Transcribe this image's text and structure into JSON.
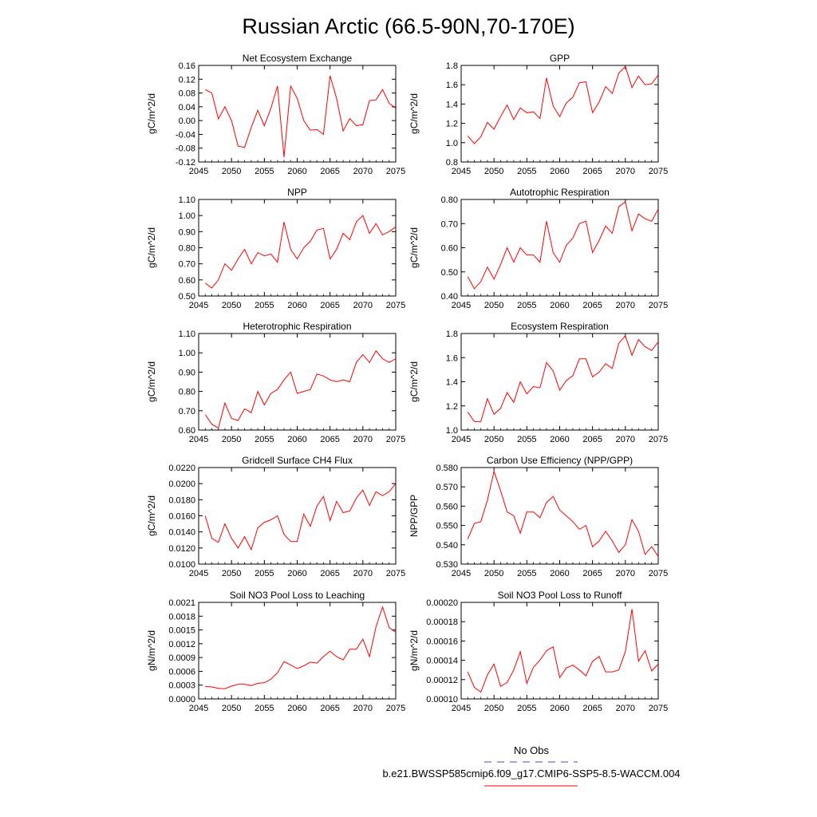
{
  "page_title": "Russian Arctic (66.5-90N,70-170E)",
  "legend": {
    "obs_label": "No Obs",
    "obs_color": "#4444cc",
    "model_label": "b.e21.BWSSP585cmip6.f09_g17.CMIP6-SSP5-8.5-WACCM.004",
    "model_color": "#ff0000"
  },
  "series_color": "#ff0000",
  "chart_data": [
    {
      "type": "line",
      "title": "Net Ecosystem Exchange",
      "ylabel": "gC/m^2/d",
      "xlim": [
        2045,
        2075
      ],
      "ylim": [
        -0.12,
        0.16
      ],
      "xticks": [
        "2045",
        "2050",
        "2055",
        "2060",
        "2065",
        "2070",
        "2075"
      ],
      "yticks": [
        "-0.12",
        "-0.08",
        "-0.04",
        "0.00",
        "0.04",
        "0.08",
        "0.12",
        "0.16"
      ],
      "x": [
        2046,
        2047,
        2048,
        2049,
        2050,
        2051,
        2052,
        2053,
        2054,
        2055,
        2056,
        2057,
        2058,
        2059,
        2060,
        2061,
        2062,
        2063,
        2064,
        2065,
        2066,
        2067,
        2068,
        2069,
        2070,
        2071,
        2072,
        2073,
        2074,
        2075
      ],
      "values": [
        0.09,
        0.08,
        0.005,
        0.04,
        0.0,
        -0.074,
        -0.078,
        -0.02,
        0.03,
        -0.015,
        0.036,
        0.1,
        -0.106,
        0.1,
        0.065,
        0.0,
        -0.028,
        -0.026,
        -0.04,
        0.13,
        0.064,
        -0.03,
        0.006,
        -0.015,
        -0.012,
        0.058,
        0.06,
        0.09,
        0.05,
        0.036
      ]
    },
    {
      "type": "line",
      "title": "GPP",
      "ylabel": "gC/m^2/d",
      "xlim": [
        2045,
        2075
      ],
      "ylim": [
        0.8,
        1.8
      ],
      "xticks": [
        "2045",
        "2050",
        "2055",
        "2060",
        "2065",
        "2070",
        "2075"
      ],
      "yticks": [
        "0.8",
        "1.0",
        "1.2",
        "1.4",
        "1.6",
        "1.8"
      ],
      "x": [
        2046,
        2047,
        2048,
        2049,
        2050,
        2051,
        2052,
        2053,
        2054,
        2055,
        2056,
        2057,
        2058,
        2059,
        2060,
        2061,
        2062,
        2063,
        2064,
        2065,
        2066,
        2067,
        2068,
        2069,
        2070,
        2071,
        2072,
        2073,
        2074,
        2075
      ],
      "values": [
        1.07,
        0.99,
        1.06,
        1.21,
        1.14,
        1.27,
        1.39,
        1.24,
        1.36,
        1.31,
        1.32,
        1.25,
        1.67,
        1.38,
        1.27,
        1.41,
        1.47,
        1.62,
        1.63,
        1.31,
        1.42,
        1.58,
        1.51,
        1.72,
        1.79,
        1.57,
        1.69,
        1.6,
        1.61,
        1.7
      ]
    },
    {
      "type": "line",
      "title": "NPP",
      "ylabel": "gC/m^2/d",
      "xlim": [
        2045,
        2075
      ],
      "ylim": [
        0.5,
        1.1
      ],
      "xticks": [
        "2045",
        "2050",
        "2055",
        "2060",
        "2065",
        "2070",
        "2075"
      ],
      "yticks": [
        "0.50",
        "0.60",
        "0.70",
        "0.80",
        "0.90",
        "1.00",
        "1.10"
      ],
      "x": [
        2046,
        2047,
        2048,
        2049,
        2050,
        2051,
        2052,
        2053,
        2054,
        2055,
        2056,
        2057,
        2058,
        2059,
        2060,
        2061,
        2062,
        2063,
        2064,
        2065,
        2066,
        2067,
        2068,
        2069,
        2070,
        2071,
        2072,
        2073,
        2074,
        2075
      ],
      "values": [
        0.58,
        0.55,
        0.6,
        0.7,
        0.66,
        0.73,
        0.79,
        0.7,
        0.77,
        0.75,
        0.76,
        0.71,
        0.96,
        0.79,
        0.73,
        0.8,
        0.84,
        0.91,
        0.92,
        0.73,
        0.79,
        0.89,
        0.85,
        0.96,
        1.0,
        0.89,
        0.95,
        0.88,
        0.9,
        0.93
      ]
    },
    {
      "type": "line",
      "title": "Autotrophic Respiration",
      "ylabel": "gC/m^2/d",
      "xlim": [
        2045,
        2075
      ],
      "ylim": [
        0.4,
        0.8
      ],
      "xticks": [
        "2045",
        "2050",
        "2055",
        "2060",
        "2065",
        "2070",
        "2075"
      ],
      "yticks": [
        "0.40",
        "0.50",
        "0.60",
        "0.70",
        "0.80"
      ],
      "x": [
        2046,
        2047,
        2048,
        2049,
        2050,
        2051,
        2052,
        2053,
        2054,
        2055,
        2056,
        2057,
        2058,
        2059,
        2060,
        2061,
        2062,
        2063,
        2064,
        2065,
        2066,
        2067,
        2068,
        2069,
        2070,
        2071,
        2072,
        2073,
        2074,
        2075
      ],
      "values": [
        0.48,
        0.43,
        0.46,
        0.52,
        0.47,
        0.53,
        0.6,
        0.54,
        0.6,
        0.57,
        0.57,
        0.54,
        0.71,
        0.58,
        0.54,
        0.61,
        0.64,
        0.7,
        0.71,
        0.58,
        0.63,
        0.69,
        0.66,
        0.77,
        0.79,
        0.67,
        0.74,
        0.72,
        0.71,
        0.76
      ]
    },
    {
      "type": "line",
      "title": "Heterotrophic Respiration",
      "ylabel": "gC/m^2/d",
      "xlim": [
        2045,
        2075
      ],
      "ylim": [
        0.6,
        1.1
      ],
      "xticks": [
        "2045",
        "2050",
        "2055",
        "2060",
        "2065",
        "2070",
        "2075"
      ],
      "yticks": [
        "0.60",
        "0.70",
        "0.80",
        "0.90",
        "1.00",
        "1.10"
      ],
      "x": [
        2046,
        2047,
        2048,
        2049,
        2050,
        2051,
        2052,
        2053,
        2054,
        2055,
        2056,
        2057,
        2058,
        2059,
        2060,
        2061,
        2062,
        2063,
        2064,
        2065,
        2066,
        2067,
        2068,
        2069,
        2070,
        2071,
        2072,
        2073,
        2074,
        2075
      ],
      "values": [
        0.68,
        0.63,
        0.61,
        0.74,
        0.66,
        0.65,
        0.71,
        0.69,
        0.8,
        0.73,
        0.79,
        0.81,
        0.86,
        0.9,
        0.79,
        0.8,
        0.81,
        0.89,
        0.88,
        0.86,
        0.85,
        0.86,
        0.85,
        0.95,
        0.99,
        0.95,
        1.01,
        0.97,
        0.95,
        0.97
      ]
    },
    {
      "type": "line",
      "title": "Ecosystem Respiration",
      "ylabel": "gC/m^2/d",
      "xlim": [
        2045,
        2075
      ],
      "ylim": [
        1.0,
        1.8
      ],
      "xticks": [
        "2045",
        "2050",
        "2055",
        "2060",
        "2065",
        "2070",
        "2075"
      ],
      "yticks": [
        "1.0",
        "1.2",
        "1.4",
        "1.6",
        "1.8"
      ],
      "x": [
        2046,
        2047,
        2048,
        2049,
        2050,
        2051,
        2052,
        2053,
        2054,
        2055,
        2056,
        2057,
        2058,
        2059,
        2060,
        2061,
        2062,
        2063,
        2064,
        2065,
        2066,
        2067,
        2068,
        2069,
        2070,
        2071,
        2072,
        2073,
        2074,
        2075
      ],
      "values": [
        1.15,
        1.07,
        1.07,
        1.26,
        1.13,
        1.18,
        1.31,
        1.23,
        1.4,
        1.3,
        1.36,
        1.35,
        1.56,
        1.49,
        1.33,
        1.41,
        1.45,
        1.59,
        1.59,
        1.44,
        1.48,
        1.55,
        1.51,
        1.72,
        1.78,
        1.62,
        1.75,
        1.69,
        1.66,
        1.73
      ]
    },
    {
      "type": "line",
      "title": "Gridcell Surface CH4 Flux",
      "ylabel": "gC/m^2/d",
      "xlim": [
        2045,
        2075
      ],
      "ylim": [
        0.01,
        0.022
      ],
      "xticks": [
        "2045",
        "2050",
        "2055",
        "2060",
        "2065",
        "2070",
        "2075"
      ],
      "yticks": [
        "0.0100",
        "0.0120",
        "0.0140",
        "0.0160",
        "0.0180",
        "0.0200",
        "0.0220"
      ],
      "x": [
        2046,
        2047,
        2048,
        2049,
        2050,
        2051,
        2052,
        2053,
        2054,
        2055,
        2056,
        2057,
        2058,
        2059,
        2060,
        2061,
        2062,
        2063,
        2064,
        2065,
        2066,
        2067,
        2068,
        2069,
        2070,
        2071,
        2072,
        2073,
        2074,
        2075
      ],
      "values": [
        0.016,
        0.0132,
        0.0127,
        0.015,
        0.0132,
        0.012,
        0.0134,
        0.0118,
        0.0145,
        0.0152,
        0.0155,
        0.016,
        0.0137,
        0.0128,
        0.0128,
        0.0162,
        0.0147,
        0.0172,
        0.0184,
        0.0154,
        0.0178,
        0.0164,
        0.0166,
        0.0182,
        0.0192,
        0.0173,
        0.019,
        0.0185,
        0.019,
        0.02
      ]
    },
    {
      "type": "line",
      "title": "Carbon Use Efficiency (NPP/GPP)",
      "ylabel": "NPP/GPP",
      "xlim": [
        2045,
        2075
      ],
      "ylim": [
        0.53,
        0.58
      ],
      "xticks": [
        "2045",
        "2050",
        "2055",
        "2060",
        "2065",
        "2070",
        "2075"
      ],
      "yticks": [
        "0.530",
        "0.540",
        "0.550",
        "0.560",
        "0.570",
        "0.580"
      ],
      "x": [
        2046,
        2047,
        2048,
        2049,
        2050,
        2051,
        2052,
        2053,
        2054,
        2055,
        2056,
        2057,
        2058,
        2059,
        2060,
        2061,
        2062,
        2063,
        2064,
        2065,
        2066,
        2067,
        2068,
        2069,
        2070,
        2071,
        2072,
        2073,
        2074,
        2075
      ],
      "values": [
        0.543,
        0.551,
        0.552,
        0.563,
        0.578,
        0.568,
        0.557,
        0.555,
        0.546,
        0.557,
        0.557,
        0.554,
        0.562,
        0.565,
        0.558,
        0.555,
        0.552,
        0.548,
        0.55,
        0.539,
        0.542,
        0.547,
        0.542,
        0.536,
        0.54,
        0.553,
        0.547,
        0.535,
        0.539,
        0.534
      ]
    },
    {
      "type": "line",
      "title": "Soil NO3 Pool Loss to Leaching",
      "ylabel": "gN/m^2/d",
      "xlim": [
        2045,
        2075
      ],
      "ylim": [
        0.0,
        0.0021
      ],
      "xticks": [
        "2045",
        "2050",
        "2055",
        "2060",
        "2065",
        "2070",
        "2075"
      ],
      "yticks": [
        "0.0000",
        "0.0003",
        "0.0006",
        "0.0009",
        "0.0012",
        "0.0015",
        "0.0018",
        "0.0021"
      ],
      "x": [
        2046,
        2047,
        2048,
        2049,
        2050,
        2051,
        2052,
        2053,
        2054,
        2055,
        2056,
        2057,
        2058,
        2059,
        2060,
        2061,
        2062,
        2063,
        2064,
        2065,
        2066,
        2067,
        2068,
        2069,
        2070,
        2071,
        2072,
        2073,
        2074,
        2075
      ],
      "values": [
        0.00027,
        0.00026,
        0.00023,
        0.00022,
        0.00028,
        0.00032,
        0.00032,
        0.00029,
        0.00034,
        0.00035,
        0.00043,
        0.00057,
        0.00081,
        0.00074,
        0.00066,
        0.00072,
        0.0008,
        0.00078,
        0.00092,
        0.00104,
        0.00092,
        0.00085,
        0.00108,
        0.00108,
        0.0013,
        0.00092,
        0.00157,
        0.002,
        0.00155,
        0.00145
      ]
    },
    {
      "type": "line",
      "title": "Soil NO3 Pool Loss to Runoff",
      "ylabel": "gN/m^2/d",
      "xlim": [
        2045,
        2075
      ],
      "ylim": [
        0.0001,
        0.0002
      ],
      "xticks": [
        "2045",
        "2050",
        "2055",
        "2060",
        "2065",
        "2070",
        "2075"
      ],
      "yticks": [
        "0.00010",
        "0.00012",
        "0.00014",
        "0.00016",
        "0.00018",
        "0.00020"
      ],
      "x": [
        2046,
        2047,
        2048,
        2049,
        2050,
        2051,
        2052,
        2053,
        2054,
        2055,
        2056,
        2057,
        2058,
        2059,
        2060,
        2061,
        2062,
        2063,
        2064,
        2065,
        2066,
        2067,
        2068,
        2069,
        2070,
        2071,
        2072,
        2073,
        2074,
        2075
      ],
      "values": [
        0.000128,
        0.000112,
        0.000107,
        0.000125,
        0.000136,
        0.000113,
        0.000117,
        0.00013,
        0.000149,
        0.000116,
        0.000133,
        0.00014,
        0.00015,
        0.000154,
        0.000122,
        0.000132,
        0.000135,
        0.00013,
        0.000124,
        0.000139,
        0.000144,
        0.000128,
        0.000128,
        0.00013,
        0.000149,
        0.000193,
        0.000139,
        0.00015,
        0.000129,
        0.000136
      ]
    }
  ]
}
